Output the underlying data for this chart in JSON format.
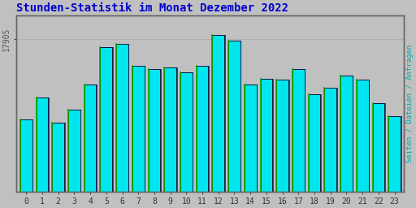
{
  "title": "Stunden-Statistik im Monat Dezember 2022",
  "title_color": "#0000cc",
  "title_fontsize": 10,
  "ylabel_right": "Seiten / Dateien / Anfragen",
  "ylabel_right_color": "#00aaaa",
  "background_color": "#c0c0c0",
  "plot_bg_color": "#c0c0c0",
  "bar_fill_color": "#00e5ee",
  "bar_left_edge_color": "#006600",
  "bar_right_edge_color": "#0000aa",
  "bar_top_edge_color": "#000000",
  "bar_shadow_color": "#0055bb",
  "categories": [
    0,
    1,
    2,
    3,
    4,
    5,
    6,
    7,
    8,
    9,
    10,
    11,
    12,
    13,
    14,
    15,
    16,
    17,
    18,
    19,
    20,
    21,
    22,
    23
  ],
  "values": [
    17650,
    17720,
    17640,
    17680,
    17760,
    17880,
    17890,
    17820,
    17810,
    17815,
    17800,
    17820,
    17920,
    17900,
    17760,
    17780,
    17775,
    17810,
    17730,
    17750,
    17790,
    17775,
    17700,
    17660
  ],
  "ymin": 17500,
  "ymax": 17950,
  "ytick_label": "17905",
  "ytick_val": 17905,
  "ytick_label_color": "#555555",
  "grid_color": "#aaaaaa",
  "font_color": "#333333",
  "tick_fontsize": 7,
  "bar_width": 0.75
}
